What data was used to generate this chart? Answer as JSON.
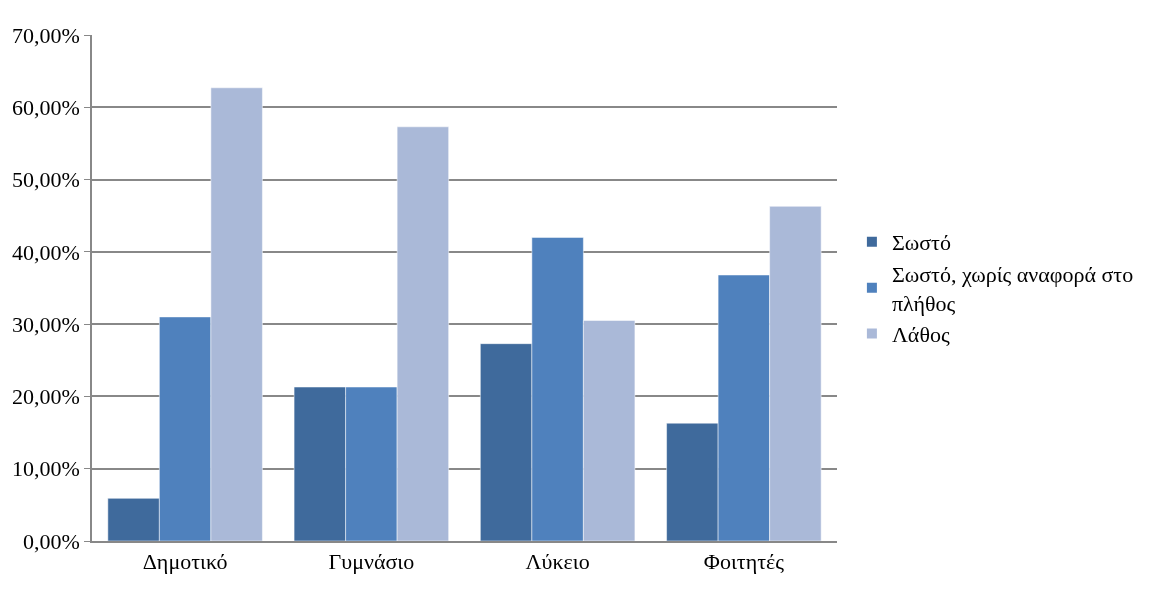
{
  "chart_data": {
    "type": "bar",
    "categories": [
      "Δημοτικό",
      "Γυμνάσιο",
      "Λύκειο",
      "Φοιτητές"
    ],
    "series": [
      {
        "name": "Σωστό",
        "color": "#3f6a9c",
        "values": [
          5.9,
          21.3,
          27.3,
          16.3
        ]
      },
      {
        "name": "Σωστό, χωρίς αναφορά στο πλήθος",
        "color": "#4f81bd",
        "values": [
          31.0,
          21.3,
          42.0,
          36.8
        ]
      },
      {
        "name": "Λάθος",
        "color": "#aab9d8",
        "values": [
          62.7,
          57.3,
          30.5,
          46.3
        ]
      }
    ],
    "ylim": [
      0,
      70
    ],
    "yticks": [
      {
        "value": 0,
        "label": "0,00%"
      },
      {
        "value": 10,
        "label": "10,00%"
      },
      {
        "value": 20,
        "label": "20,00%"
      },
      {
        "value": 30,
        "label": "30,00%"
      },
      {
        "value": 40,
        "label": "40,00%"
      },
      {
        "value": 50,
        "label": "50,00%"
      },
      {
        "value": 60,
        "label": "60,00%"
      },
      {
        "value": 70,
        "label": "70,00%"
      }
    ],
    "grid": "y",
    "legend": "right"
  }
}
